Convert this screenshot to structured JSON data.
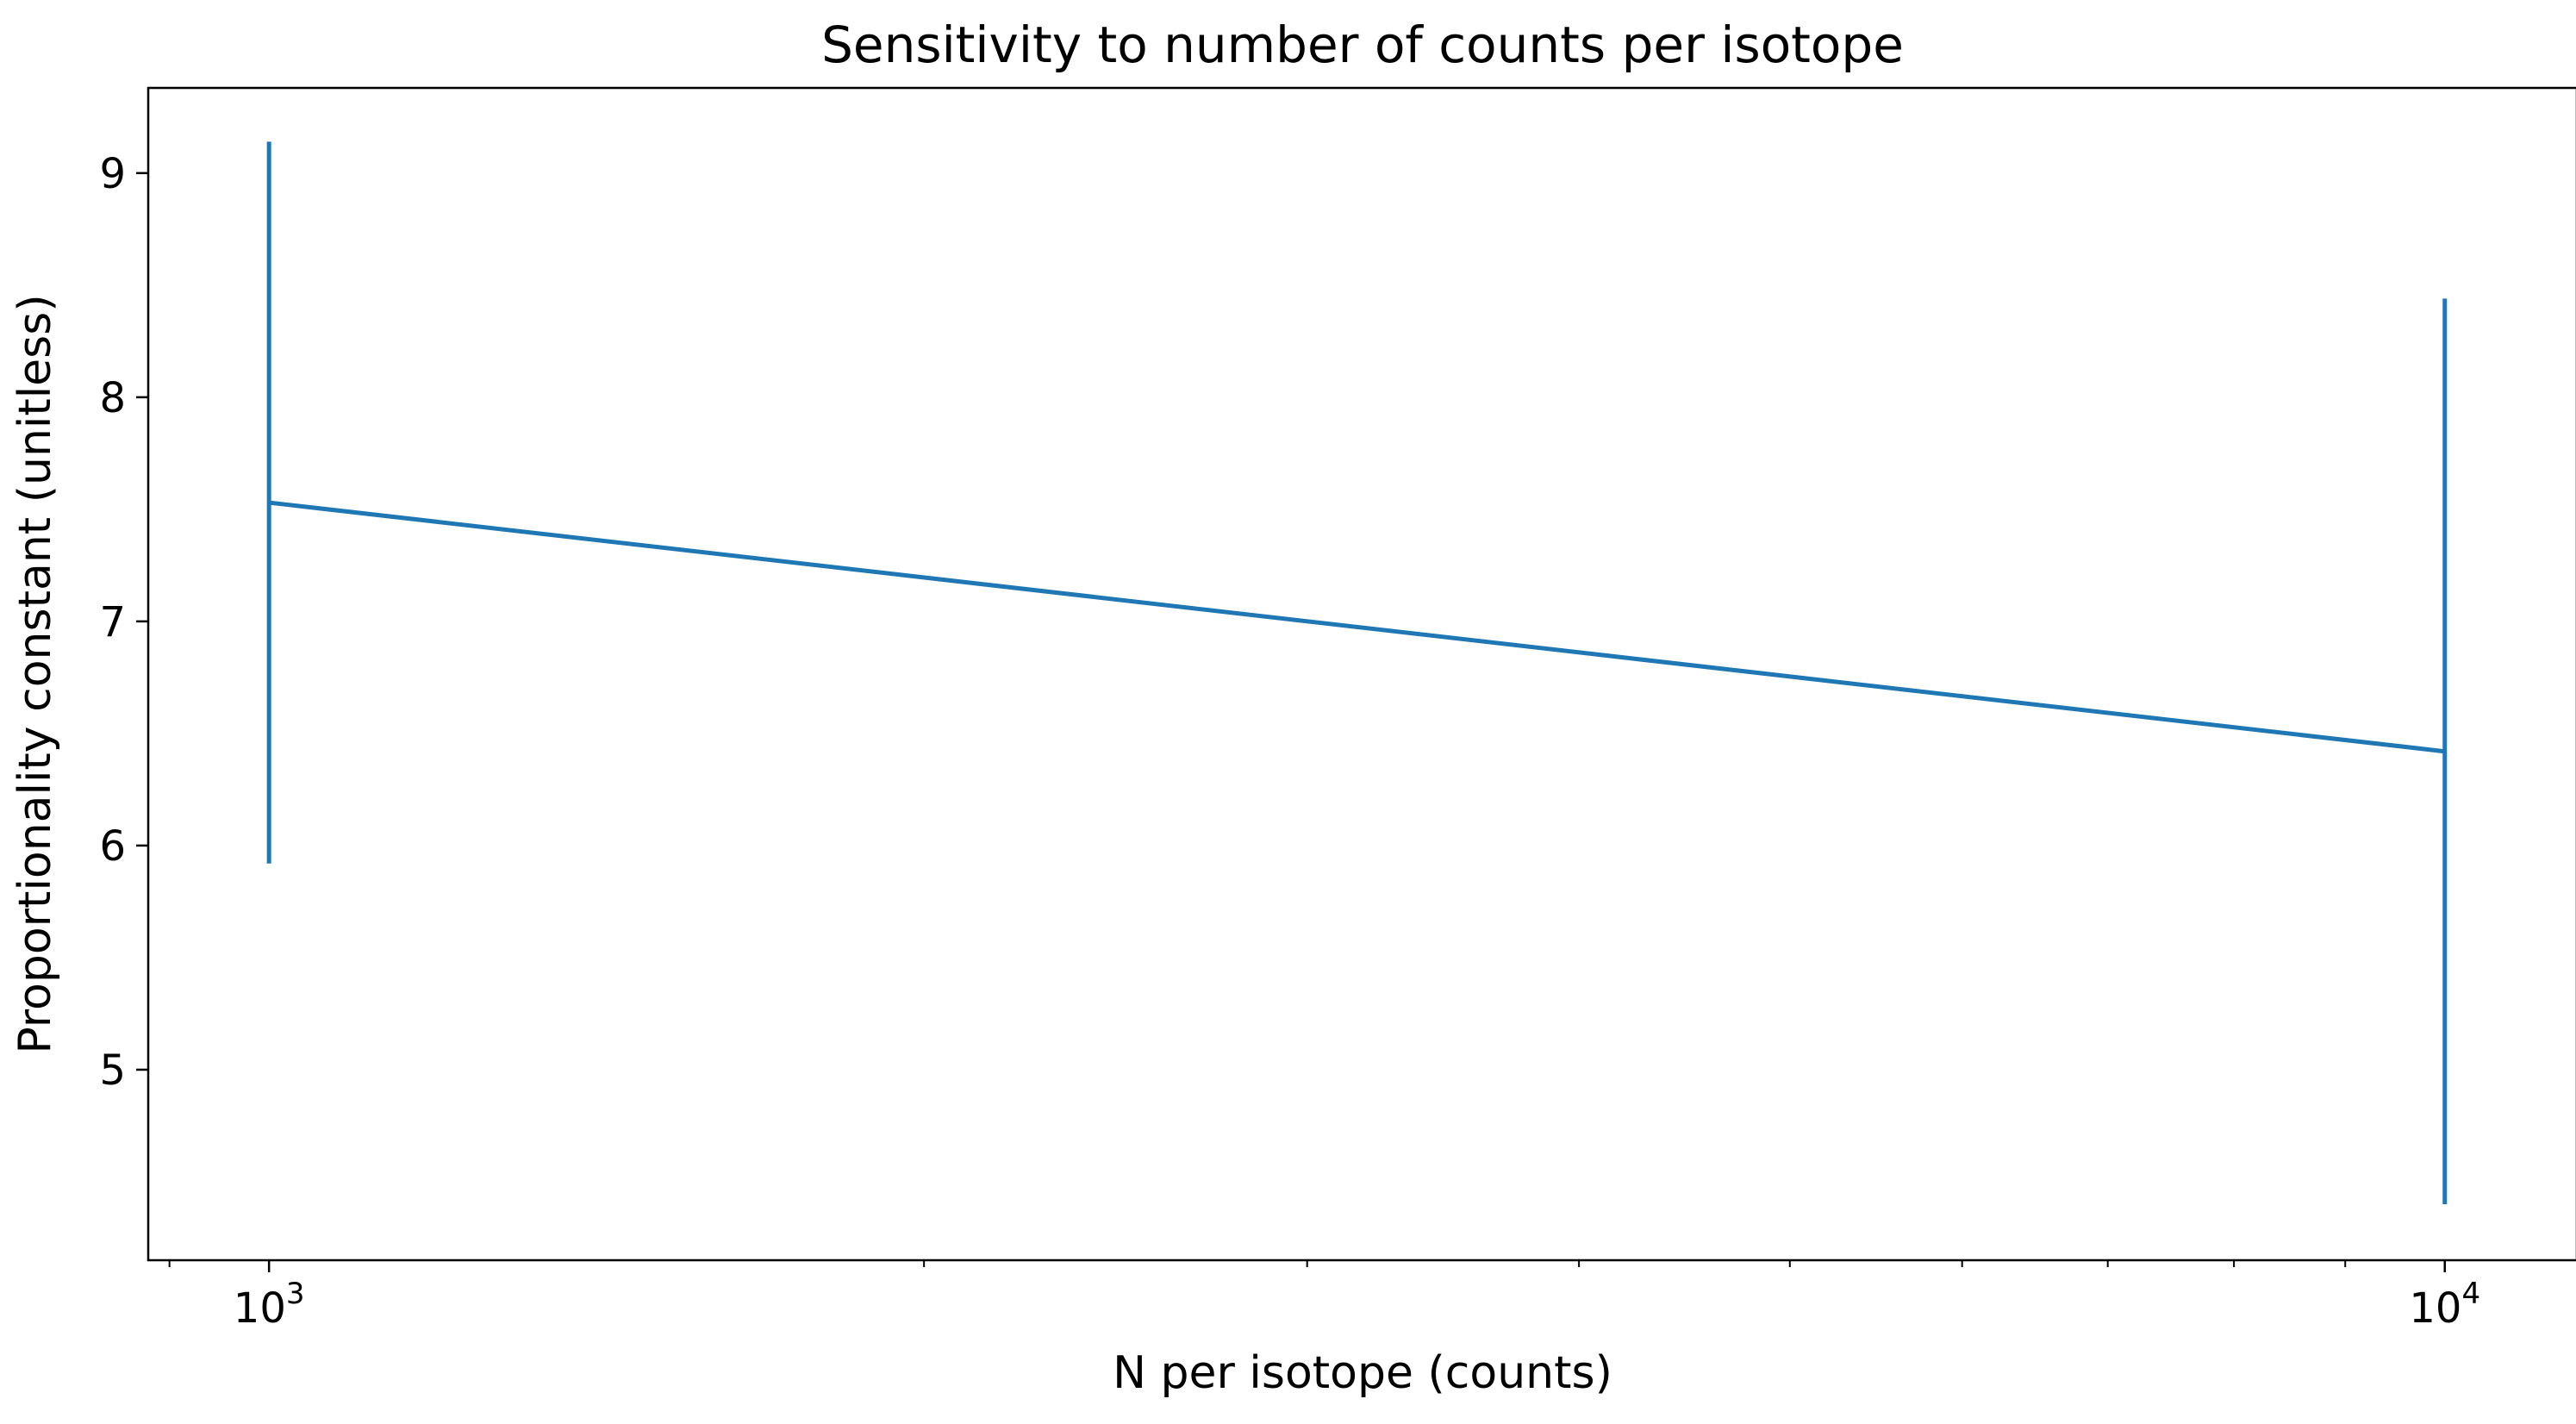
{
  "chart_data": {
    "type": "line",
    "title": "Sensitivity to number of counts per isotope",
    "xlabel": "N per isotope (counts)",
    "ylabel": "Proportionality constant (unitless)",
    "xscale": "log",
    "xlim": [
      880,
      11500
    ],
    "ylim": [
      4.15,
      9.38
    ],
    "grid": false,
    "x_ticks": [
      {
        "value": 1000,
        "base": "10",
        "exp": "3"
      },
      {
        "value": 10000,
        "base": "10",
        "exp": "4"
      }
    ],
    "y_ticks": [
      {
        "value": 5,
        "label": "5"
      },
      {
        "value": 6,
        "label": "6"
      },
      {
        "value": 7,
        "label": "7"
      },
      {
        "value": 8,
        "label": "8"
      },
      {
        "value": 9,
        "label": "9"
      }
    ],
    "series": [
      {
        "color": "#1f77b4",
        "points": [
          {
            "x": 1000,
            "y": 7.53,
            "yerr_low": 5.92,
            "yerr_high": 9.14
          },
          {
            "x": 10000,
            "y": 6.42,
            "yerr_low": 4.4,
            "yerr_high": 8.44
          }
        ]
      }
    ]
  }
}
